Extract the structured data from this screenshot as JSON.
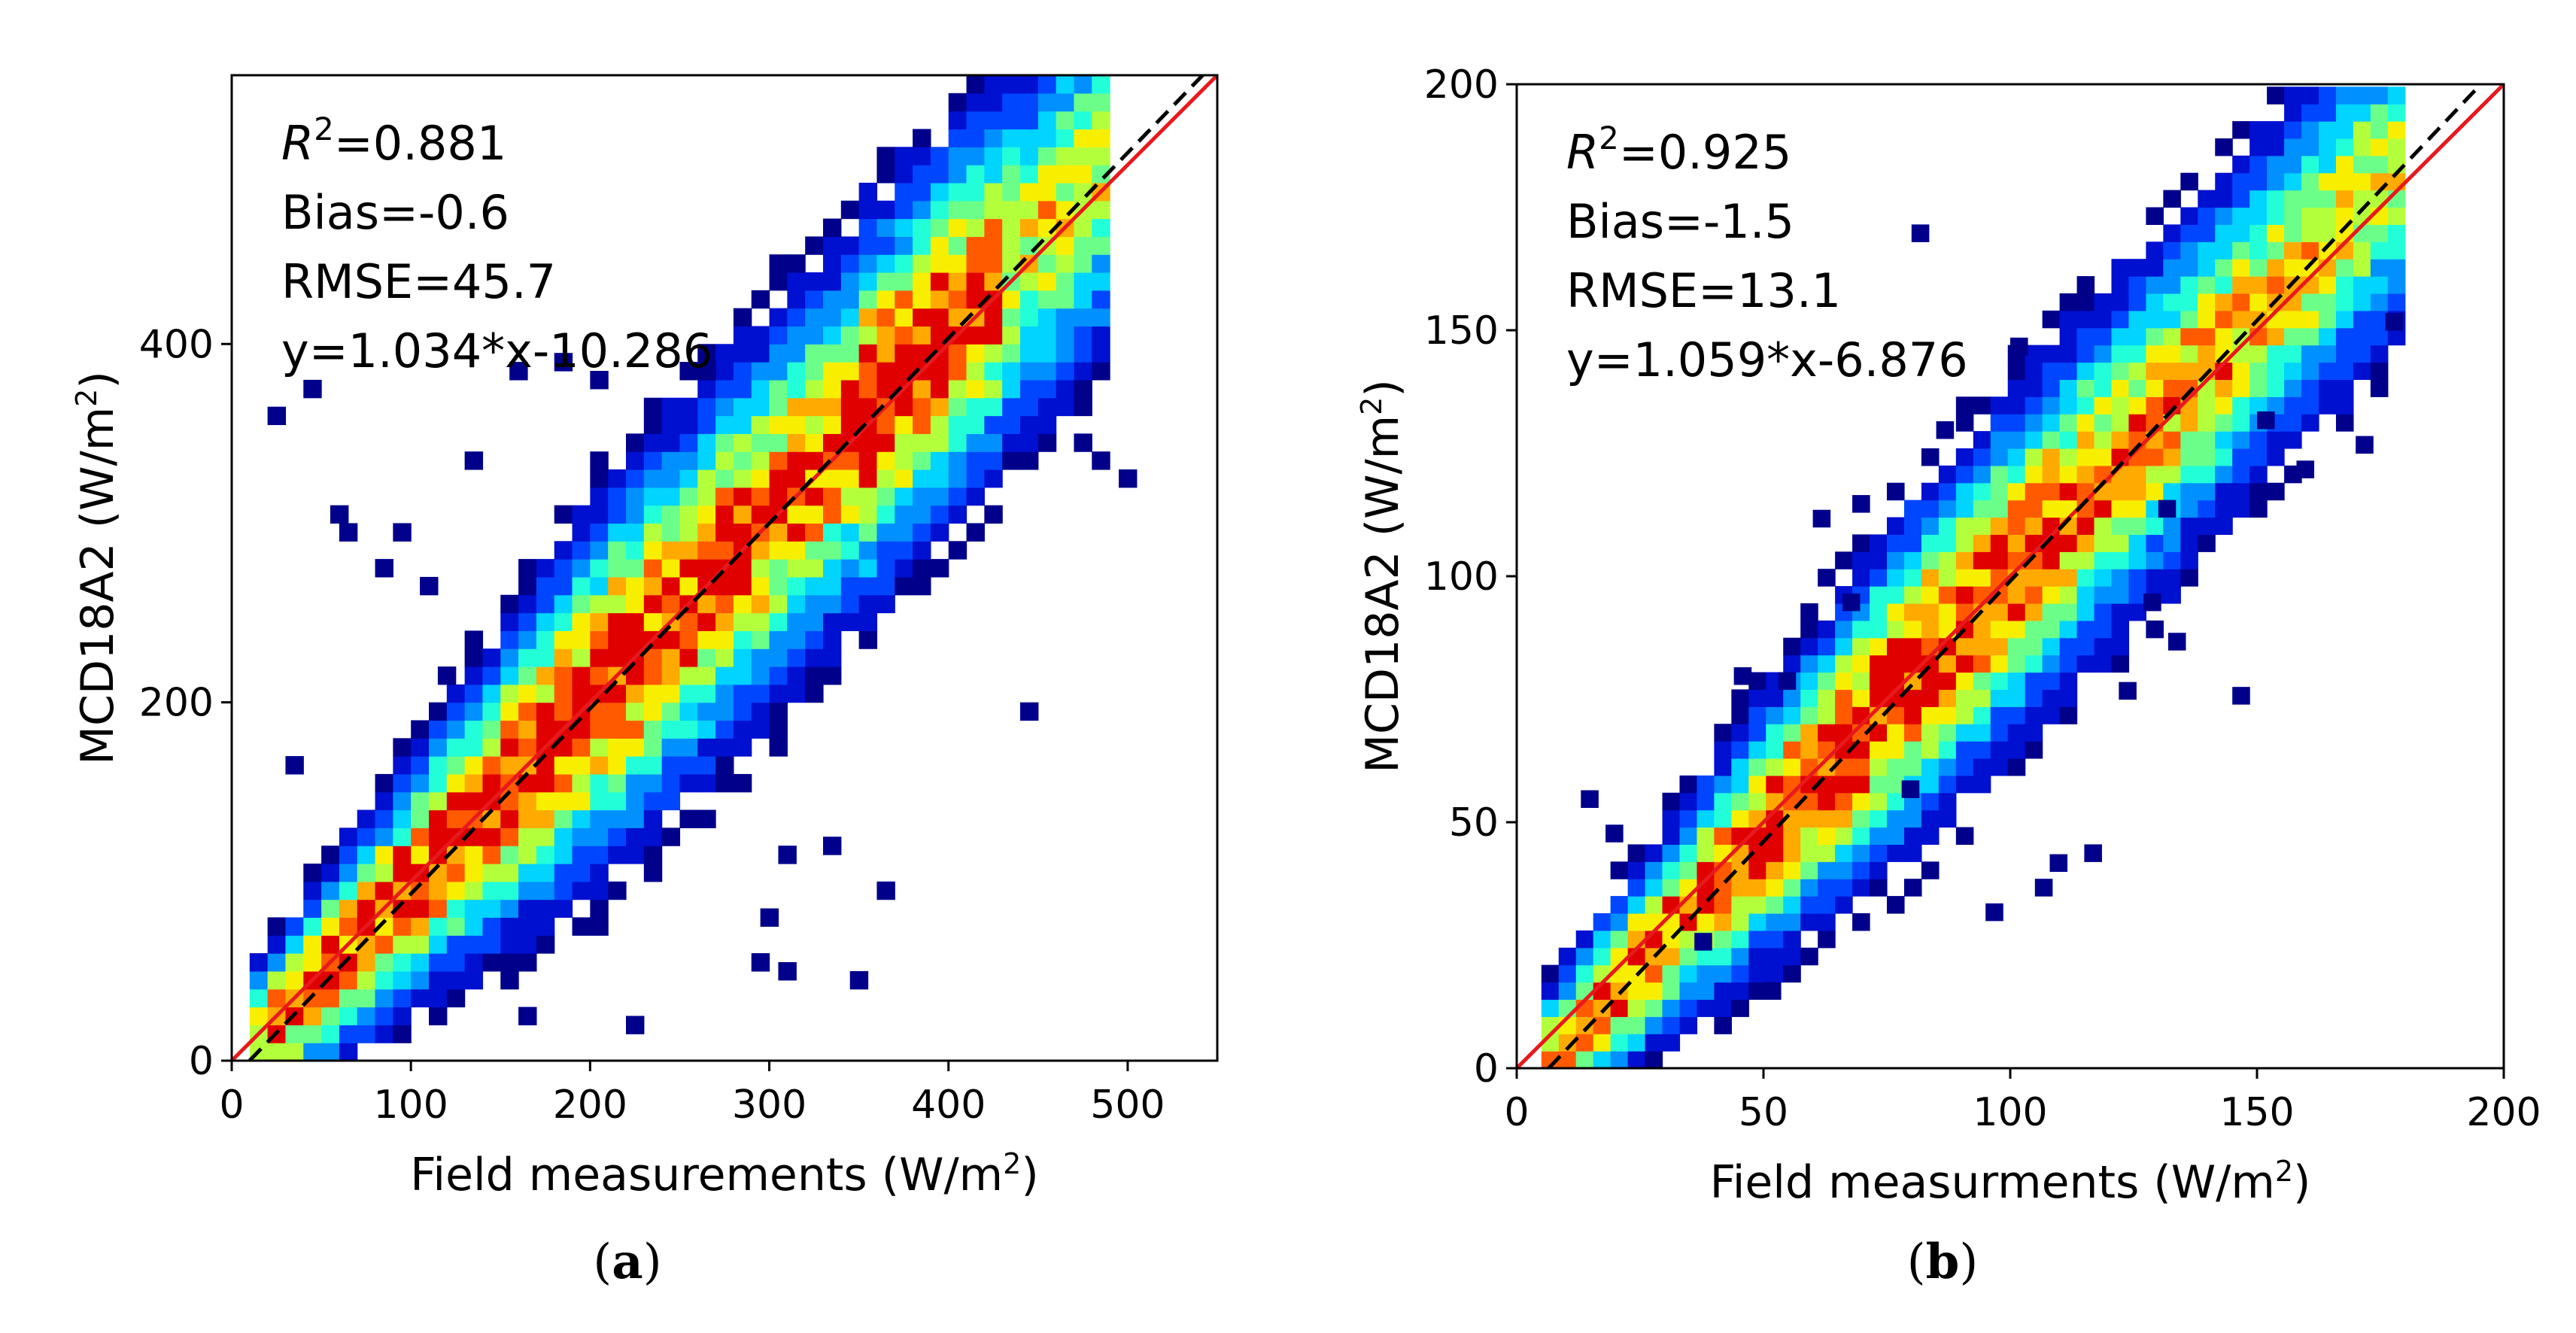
{
  "chart_data": [
    {
      "type": "heatmap",
      "subtype": "density-scatter",
      "panel_label": "a",
      "xlabel": "Field measurements (W/m²)",
      "ylabel": "MCD18A2 (W/m²)",
      "xlim": [
        0,
        550
      ],
      "ylim": [
        0,
        550
      ],
      "xticks": [
        0,
        100,
        200,
        300,
        400,
        500
      ],
      "yticks": [
        0,
        200,
        400
      ],
      "bin_size": 10,
      "stats": {
        "r2_sym": "R",
        "r2_sup": "2",
        "r2_value": "=0.881",
        "bias": "Bias=-0.6",
        "rmse": "RMSE=45.7",
        "fit": "y=1.034*x-10.286"
      },
      "fit_line": {
        "slope": 1.034,
        "intercept": -10.286,
        "color": "#000000",
        "style": "dashed"
      },
      "one_to_one_line": {
        "color": "#e8191c"
      },
      "density_trend": {
        "x_start": 10,
        "x_end": 480,
        "spread": 55
      },
      "sparse_bins": [
        [
          20,
          355
        ],
        [
          40,
          370
        ],
        [
          30,
          160
        ],
        [
          60,
          290
        ],
        [
          90,
          290
        ],
        [
          115,
          210
        ],
        [
          130,
          330
        ],
        [
          155,
          380
        ],
        [
          180,
          385
        ],
        [
          260,
          380
        ],
        [
          200,
          375
        ],
        [
          440,
          190
        ],
        [
          495,
          320
        ],
        [
          480,
          330
        ],
        [
          470,
          340
        ],
        [
          305,
          45
        ],
        [
          345,
          40
        ],
        [
          290,
          50
        ],
        [
          220,
          15
        ],
        [
          160,
          20
        ],
        [
          360,
          90
        ],
        [
          305,
          110
        ],
        [
          330,
          115
        ],
        [
          295,
          75
        ],
        [
          55,
          300
        ],
        [
          80,
          270
        ],
        [
          105,
          260
        ]
      ]
    },
    {
      "type": "heatmap",
      "subtype": "density-scatter",
      "panel_label": "b",
      "xlabel": "Field measurments (W/m²)",
      "ylabel": "MCD18A2 (W/m²)",
      "xlim": [
        0,
        200
      ],
      "ylim": [
        0,
        200
      ],
      "xticks": [
        0,
        50,
        100,
        150,
        200
      ],
      "yticks": [
        0,
        50,
        100,
        150,
        200
      ],
      "bin_size": 3.5,
      "stats": {
        "r2_sym": "R",
        "r2_sup": "2",
        "r2_value": "=0.925",
        "bias": "Bias=-1.5",
        "rmse": "RMSE=13.1",
        "fit": "y=1.059*x-6.876"
      },
      "fit_line": {
        "slope": 1.059,
        "intercept": -6.876,
        "color": "#000000",
        "style": "dashed"
      },
      "one_to_one_line": {
        "color": "#e8191c"
      },
      "density_trend": {
        "x_start": 5,
        "x_end": 175,
        "spread": 18
      },
      "sparse_bins": [
        [
          13,
          53
        ],
        [
          18,
          46
        ],
        [
          36,
          24
        ],
        [
          44,
          78
        ],
        [
          53,
          77
        ],
        [
          50,
          14
        ],
        [
          68,
          113
        ],
        [
          80,
          168
        ],
        [
          85,
          128
        ],
        [
          115,
          42
        ],
        [
          122,
          75
        ],
        [
          127,
          93
        ],
        [
          145,
          74
        ],
        [
          150,
          130
        ],
        [
          158,
          120
        ],
        [
          170,
          125
        ],
        [
          176,
          150
        ],
        [
          95,
          30
        ],
        [
          105,
          35
        ],
        [
          78,
          55
        ],
        [
          108,
          40
        ],
        [
          132,
          85
        ],
        [
          130,
          112
        ],
        [
          100,
          145
        ],
        [
          60,
          110
        ],
        [
          66,
          93
        ]
      ]
    }
  ],
  "captions": {
    "a": "a",
    "b": "b"
  },
  "colormap": [
    "#00008b",
    "#0010d0",
    "#0046ff",
    "#0090ff",
    "#00d4ff",
    "#22ffd8",
    "#6bff8a",
    "#b4ff3c",
    "#f8ef00",
    "#ffaa00",
    "#ff5a00",
    "#e00000"
  ]
}
